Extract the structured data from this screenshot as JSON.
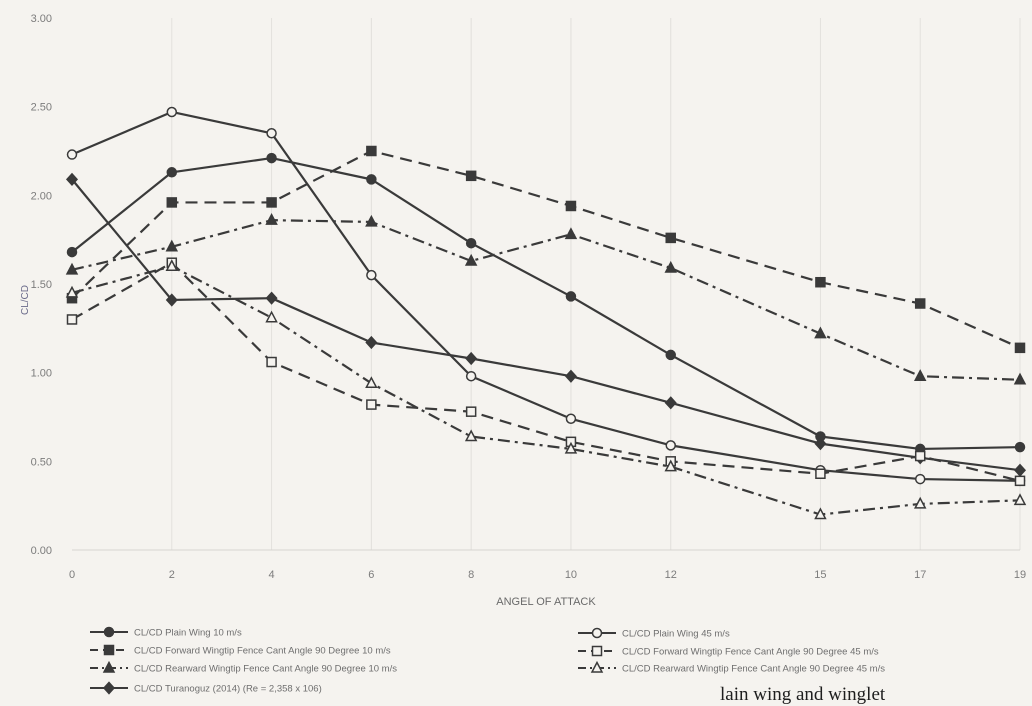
{
  "chart_data": {
    "type": "line",
    "title": "",
    "xlabel": "ANGEL OF ATTACK",
    "ylabel": "CL/CD",
    "categories": [
      "0",
      "2",
      "4",
      "6",
      "8",
      "10",
      "12",
      "15",
      "17",
      "19"
    ],
    "x": [
      0,
      2,
      4,
      6,
      8,
      10,
      12,
      15,
      17,
      19
    ],
    "yticks": [
      "0.00",
      "0.50",
      "1.00",
      "1.50",
      "2.00",
      "2.50",
      "3.00"
    ],
    "ylim": [
      0,
      3
    ],
    "grid": "vertical",
    "legend_position": "bottom",
    "series": [
      {
        "name": "CL/CD Plain Wing 10 m/s",
        "values": [
          1.68,
          2.13,
          2.21,
          2.09,
          1.73,
          1.43,
          1.1,
          0.64,
          0.57,
          0.58
        ],
        "color": "#3a3a3a",
        "dash": "solid",
        "marker": "circle-filled"
      },
      {
        "name": "CL/CD Forward Wingtip Fence Cant Angle 90 Degree 10 m/s",
        "values": [
          1.42,
          1.96,
          1.96,
          2.25,
          2.11,
          1.94,
          1.76,
          1.51,
          1.39,
          1.14
        ],
        "color": "#3a3a3a",
        "dash": "dash",
        "marker": "square-filled"
      },
      {
        "name": "CL/CD Rearward Wingtip Fence Cant Angle 90 Degree 10 m/s",
        "values": [
          1.58,
          1.71,
          1.86,
          1.85,
          1.63,
          1.78,
          1.59,
          1.22,
          0.98,
          0.96
        ],
        "color": "#3a3a3a",
        "dash": "dashdot",
        "marker": "triangle-filled"
      },
      {
        "name": "CL/CD Turanoguz (2014) (Re = 2,358 x 106)",
        "values": [
          2.09,
          1.41,
          1.42,
          1.17,
          1.08,
          0.98,
          0.83,
          0.6,
          0.52,
          0.45
        ],
        "color": "#3a3a3a",
        "dash": "solid",
        "marker": "diamond-filled"
      },
      {
        "name": "CL/CD Plain Wing 45 m/s",
        "values": [
          2.23,
          2.47,
          2.35,
          1.55,
          0.98,
          0.74,
          0.59,
          0.45,
          0.4,
          0.39
        ],
        "color": "#3a3a3a",
        "dash": "solid",
        "marker": "circle-open"
      },
      {
        "name": "CL/CD Forward Wingtip Fence Cant Angle 90 Degree 45 m/s",
        "values": [
          1.3,
          1.62,
          1.06,
          0.82,
          0.78,
          0.61,
          0.5,
          0.43,
          0.53,
          0.39
        ],
        "color": "#3a3a3a",
        "dash": "dash",
        "marker": "square-open"
      },
      {
        "name": "CL/CD Rearward Wingtip Fence Cant Angle 90 Degree 45 m/s",
        "values": [
          1.45,
          1.6,
          1.31,
          0.94,
          0.64,
          0.57,
          0.47,
          0.2,
          0.26,
          0.28
        ],
        "color": "#3a3a3a",
        "dash": "dashdot",
        "marker": "triangle-open"
      }
    ]
  },
  "caption": "lain wing and winglet"
}
